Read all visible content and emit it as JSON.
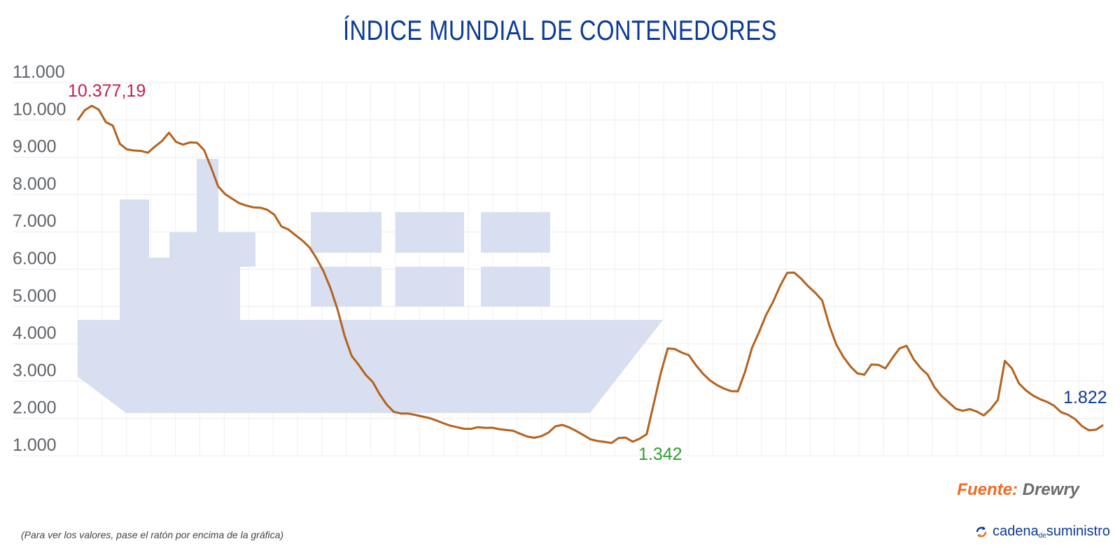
{
  "chart_data": {
    "type": "line",
    "title": "ÍNDICE MUNDIAL DE CONTENEDORES",
    "xlabel": "",
    "ylabel": "",
    "ylim": [
      1000,
      11000
    ],
    "yticks": [
      1000,
      2000,
      3000,
      4000,
      5000,
      6000,
      7000,
      8000,
      9000,
      10000,
      11000
    ],
    "ytick_labels": [
      "1.000",
      "2.000",
      "3.000",
      "4.000",
      "5.000",
      "6.000",
      "7.000",
      "8.000",
      "9.000",
      "10.000",
      "11.000"
    ],
    "grid": true,
    "line_color": "#b5621d",
    "values": [
      9990,
      10258,
      10377,
      10275,
      9943,
      9847,
      9360,
      9211,
      9181,
      9168,
      9120,
      9287,
      9434,
      9656,
      9410,
      9337,
      9398,
      9386,
      9189,
      8721,
      8215,
      8010,
      7885,
      7767,
      7703,
      7656,
      7647,
      7591,
      7456,
      7145,
      7062,
      6912,
      6765,
      6585,
      6289,
      5941,
      5486,
      4915,
      4211,
      3678,
      3435,
      3169,
      2977,
      2642,
      2370,
      2176,
      2131,
      2131,
      2095,
      2053,
      2013,
      1950,
      1875,
      1806,
      1765,
      1722,
      1719,
      1765,
      1747,
      1750,
      1712,
      1688,
      1667,
      1587,
      1515,
      1480,
      1522,
      1618,
      1787,
      1826,
      1757,
      1660,
      1551,
      1439,
      1394,
      1370,
      1342,
      1473,
      1485,
      1375,
      1456,
      1574,
      2385,
      3199,
      3875,
      3860,
      3765,
      3695,
      3430,
      3203,
      3019,
      2894,
      2800,
      2731,
      2726,
      3245,
      3890,
      4310,
      4770,
      5124,
      5547,
      5900,
      5909,
      5744,
      5540,
      5370,
      5160,
      4492,
      3981,
      3651,
      3395,
      3206,
      3171,
      3444,
      3435,
      3340,
      3623,
      3875,
      3945,
      3590,
      3350,
      3177,
      2829,
      2599,
      2434,
      2258,
      2202,
      2250,
      2184,
      2078,
      2255,
      2495,
      3542,
      3337,
      2938,
      2750,
      2613,
      2516,
      2442,
      2340,
      2167,
      2097,
      1981,
      1788,
      1680,
      1700,
      1822
    ],
    "annotations": [
      {
        "label": "10.377,19",
        "value": 10377.19,
        "color": "#c41f4f",
        "marks": "maximum"
      },
      {
        "label": "1.342",
        "value": 1342,
        "color": "#2ea02e",
        "marks": "minimum"
      },
      {
        "label": "1.822",
        "value": 1822,
        "color": "#0b3a97",
        "marks": "latest"
      }
    ],
    "background_illustration": "container-ship-icon",
    "illustration_color": "#d7dff0"
  },
  "source": {
    "key": "Fuente:",
    "value": "Drewry"
  },
  "note": "(Para ver los valores, pase el ratón por encima de la gráfica)",
  "logo": {
    "part1": "cadena",
    "part2": "de",
    "part3": "suministro"
  }
}
